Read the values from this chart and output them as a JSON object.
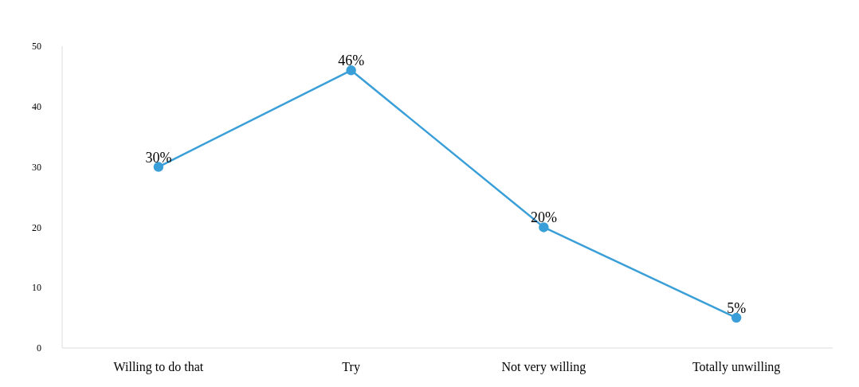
{
  "chart_data": {
    "type": "line",
    "categories": [
      "Willing to do that",
      "Try",
      "Not very willing",
      "Totally unwilling"
    ],
    "series": [
      {
        "color": "#3a9fd8",
        "values": [
          30,
          46,
          20,
          5
        ],
        "value_labels": [
          "30%",
          "46%",
          "20%",
          "5%"
        ]
      }
    ],
    "ylim": [
      0,
      50
    ],
    "yticks": [
      0,
      10,
      20,
      30,
      40,
      50
    ],
    "grid": false,
    "legend": false,
    "marker": "circle",
    "line_style": "solid"
  }
}
